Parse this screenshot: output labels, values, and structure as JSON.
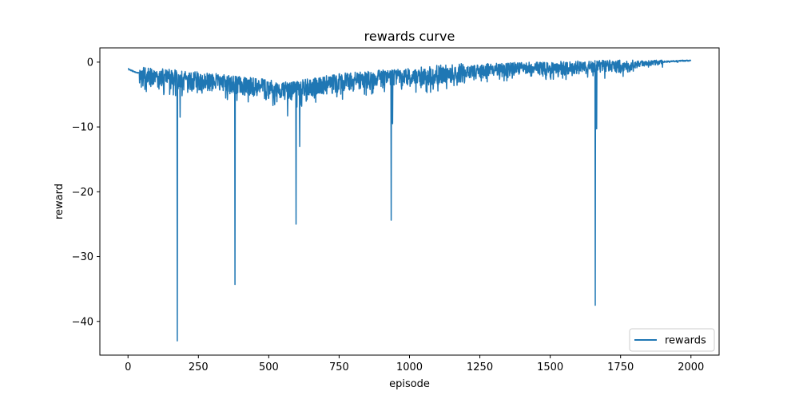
{
  "chart_data": {
    "type": "line",
    "title": "rewards curve",
    "xlabel": "episode",
    "ylabel": "reward",
    "xlim": [
      -100,
      2100
    ],
    "ylim": [
      -45.2,
      2.2
    ],
    "xticks": [
      0,
      250,
      500,
      750,
      1000,
      1250,
      1500,
      1750,
      2000
    ],
    "yticks": [
      0,
      -10,
      -20,
      -30,
      -40
    ],
    "xtick_labels": [
      "0",
      "250",
      "500",
      "750",
      "1000",
      "1250",
      "1500",
      "1750",
      "2000"
    ],
    "ytick_labels": [
      "0",
      "−10",
      "−20",
      "−30",
      "−40"
    ],
    "grid": false,
    "legend": {
      "position": "bottom-right",
      "entries": [
        "rewards"
      ]
    },
    "series": [
      {
        "name": "rewards",
        "color": "#1f77b4",
        "baseline": [
          [
            0,
            -1.0
          ],
          [
            30,
            -1.6
          ],
          [
            80,
            -1.8
          ],
          [
            150,
            -2.0
          ],
          [
            200,
            -2.2
          ],
          [
            280,
            -2.5
          ],
          [
            350,
            -2.8
          ],
          [
            420,
            -3.2
          ],
          [
            500,
            -3.6
          ],
          [
            570,
            -3.9
          ],
          [
            620,
            -3.6
          ],
          [
            700,
            -3.0
          ],
          [
            780,
            -2.5
          ],
          [
            850,
            -2.2
          ],
          [
            950,
            -2.0
          ],
          [
            1050,
            -1.6
          ],
          [
            1150,
            -1.2
          ],
          [
            1250,
            -0.9
          ],
          [
            1350,
            -0.7
          ],
          [
            1450,
            -0.6
          ],
          [
            1550,
            -0.5
          ],
          [
            1650,
            -0.4
          ],
          [
            1750,
            -0.2
          ],
          [
            1850,
            0.0
          ],
          [
            1950,
            0.2
          ],
          [
            2000,
            0.3
          ]
        ],
        "spikes": [
          {
            "x": 175,
            "y": -43.0
          },
          {
            "x": 380,
            "y": -34.3
          },
          {
            "x": 597,
            "y": -25.0
          },
          {
            "x": 935,
            "y": -24.4
          },
          {
            "x": 1660,
            "y": -37.5
          },
          {
            "x": 567,
            "y": -8.3
          },
          {
            "x": 610,
            "y": -13.0
          },
          {
            "x": 940,
            "y": -9.5
          },
          {
            "x": 1665,
            "y": -10.3
          },
          {
            "x": 185,
            "y": -8.5
          }
        ]
      }
    ]
  }
}
